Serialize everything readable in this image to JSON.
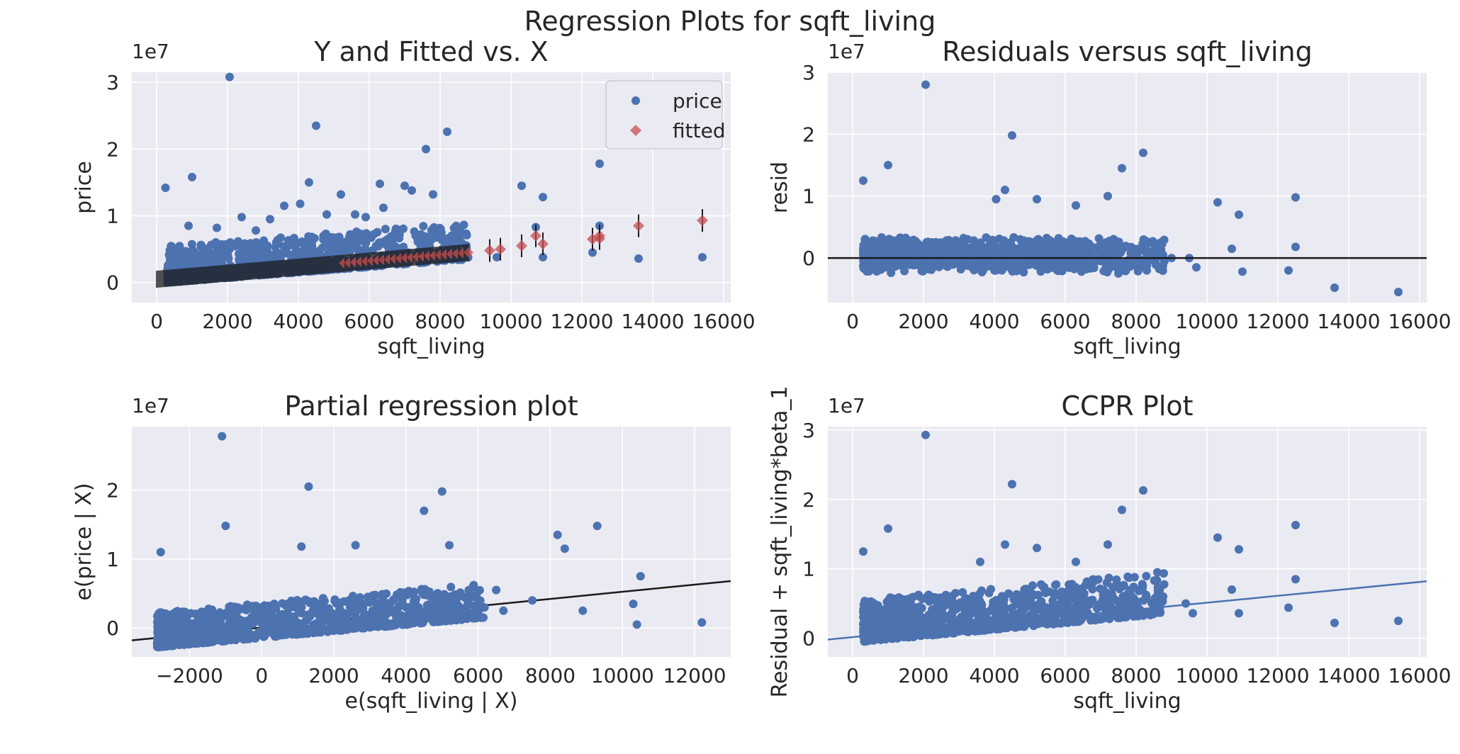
{
  "figure_title": "Regression Plots for sqft_living",
  "colors": {
    "panel_bg": "#eaeaf2",
    "grid": "#ffffff",
    "price_points": "#4c72b0",
    "fitted_points": "#c44e52",
    "errorbars": "#1a1a1a",
    "fit_line_black": "#1a1a1a",
    "fit_line_blue": "#4c72b0"
  },
  "chart_data": [
    {
      "type": "scatter",
      "title": "Y and Fitted vs. X",
      "xlabel": "sqft_living",
      "ylabel": "price",
      "y_offset_label": "1e7",
      "xlim": [
        -700,
        16200
      ],
      "ylim": [
        -0.3,
        3.15
      ],
      "xticks": [
        0,
        2000,
        4000,
        6000,
        8000,
        10000,
        12000,
        14000,
        16000
      ],
      "xtick_labels": [
        "0",
        "2000",
        "4000",
        "6000",
        "8000",
        "10000",
        "12000",
        "14000",
        "16000"
      ],
      "yticks": [
        0,
        1,
        2,
        3
      ],
      "ytick_labels": [
        "0",
        "1",
        "2",
        "3"
      ],
      "grid": true,
      "legend": {
        "placement": "top-right",
        "entries": [
          "price",
          "fitted"
        ]
      },
      "series": [
        {
          "name": "price",
          "marker": "circle",
          "points": [
            [
              2060,
              3.08
            ],
            [
              4500,
              2.35
            ],
            [
              8200,
              2.26
            ],
            [
              7600,
              2.0
            ],
            [
              12500,
              1.78
            ],
            [
              1000,
              1.58
            ],
            [
              4300,
              1.5
            ],
            [
              7000,
              1.45
            ],
            [
              6300,
              1.48
            ],
            [
              7200,
              1.38
            ],
            [
              7800,
              1.32
            ],
            [
              250,
              1.42
            ],
            [
              10300,
              1.45
            ],
            [
              10900,
              1.28
            ],
            [
              5200,
              1.32
            ],
            [
              4050,
              1.18
            ],
            [
              3600,
              1.15
            ],
            [
              4800,
              1.02
            ],
            [
              5600,
              1.02
            ],
            [
              5900,
              0.98
            ],
            [
              6400,
              1.12
            ],
            [
              3200,
              0.95
            ],
            [
              900,
              0.85
            ],
            [
              1700,
              0.82
            ],
            [
              2400,
              0.98
            ],
            [
              2800,
              0.78
            ],
            [
              10700,
              0.83
            ],
            [
              12500,
              0.85
            ],
            [
              12300,
              0.45
            ],
            [
              13600,
              0.36
            ],
            [
              15400,
              0.38
            ],
            [
              9600,
              0.38
            ],
            [
              10900,
              0.38
            ],
            [
              7500,
              0.5
            ],
            [
              8100,
              0.45
            ],
            [
              8600,
              0.45
            ]
          ],
          "cloud": {
            "x_range": [
              300,
              8800
            ],
            "y_low_at_x_min": 0.0,
            "y_low_at_x_max": 0.35,
            "spread": 0.55
          }
        },
        {
          "name": "fitted",
          "marker": "diamond",
          "errorbars": true,
          "line": {
            "x_range": [
              0,
              8800
            ],
            "y_range": [
              0.05,
              0.45
            ]
          },
          "points": [
            [
              9400,
              0.48
            ],
            [
              9700,
              0.5
            ],
            [
              10300,
              0.55
            ],
            [
              10700,
              0.7
            ],
            [
              10900,
              0.58
            ],
            [
              12300,
              0.65
            ],
            [
              12500,
              0.7
            ],
            [
              12500,
              0.66
            ],
            [
              13600,
              0.85
            ],
            [
              15400,
              0.93
            ]
          ]
        }
      ]
    },
    {
      "type": "scatter",
      "title": "Residuals versus sqft_living",
      "xlabel": "sqft_living",
      "ylabel": "resid",
      "y_offset_label": "1e7",
      "xlim": [
        -700,
        16200
      ],
      "ylim": [
        -0.72,
        3.0
      ],
      "xticks": [
        0,
        2000,
        4000,
        6000,
        8000,
        10000,
        12000,
        14000,
        16000
      ],
      "xtick_labels": [
        "0",
        "2000",
        "4000",
        "6000",
        "8000",
        "10000",
        "12000",
        "14000",
        "16000"
      ],
      "yticks": [
        0,
        1,
        2,
        3
      ],
      "ytick_labels": [
        "0",
        "1",
        "2",
        "3"
      ],
      "grid": true,
      "hline": 0,
      "series": [
        {
          "marker": "circle",
          "points": [
            [
              2060,
              2.8
            ],
            [
              4500,
              1.98
            ],
            [
              8200,
              1.7
            ],
            [
              7600,
              1.45
            ],
            [
              1000,
              1.5
            ],
            [
              300,
              1.25
            ],
            [
              4300,
              1.1
            ],
            [
              7200,
              1.0
            ],
            [
              12500,
              0.98
            ],
            [
              10300,
              0.9
            ],
            [
              4050,
              0.95
            ],
            [
              10900,
              0.7
            ],
            [
              5200,
              0.95
            ],
            [
              6300,
              0.85
            ],
            [
              10700,
              0.15
            ],
            [
              12500,
              0.18
            ],
            [
              12300,
              -0.2
            ],
            [
              13600,
              -0.48
            ],
            [
              15400,
              -0.55
            ],
            [
              11000,
              -0.22
            ],
            [
              9500,
              0.0
            ],
            [
              9700,
              -0.15
            ],
            [
              7500,
              -0.25
            ],
            [
              8300,
              -0.2
            ],
            [
              8800,
              -0.05
            ],
            [
              9000,
              0.0
            ]
          ],
          "cloud": {
            "x_range": [
              300,
              8800
            ],
            "y_center": 0.05,
            "spread": 0.5
          }
        }
      ]
    },
    {
      "type": "scatter",
      "title": "Partial regression plot",
      "xlabel": "e(sqft_living | X)",
      "ylabel": "e(price | X)",
      "y_offset_label": "1e7",
      "xlim": [
        -3600,
        13000
      ],
      "ylim": [
        -0.42,
        2.92
      ],
      "xticks": [
        -2000,
        0,
        2000,
        4000,
        6000,
        8000,
        10000,
        12000
      ],
      "xtick_labels": [
        "−2000",
        "0",
        "2000",
        "4000",
        "6000",
        "8000",
        "10000",
        "12000"
      ],
      "yticks": [
        0,
        1,
        2
      ],
      "ytick_labels": [
        "0",
        "1",
        "2"
      ],
      "grid": true,
      "fit_line": {
        "x": [
          -3600,
          13000
        ],
        "y": [
          -0.18,
          0.68
        ]
      },
      "series": [
        {
          "marker": "circle",
          "points": [
            [
              -1100,
              2.78
            ],
            [
              1300,
              2.05
            ],
            [
              5000,
              1.98
            ],
            [
              4500,
              1.7
            ],
            [
              -1000,
              1.48
            ],
            [
              9300,
              1.48
            ],
            [
              8200,
              1.35
            ],
            [
              8400,
              1.15
            ],
            [
              -2800,
              1.1
            ],
            [
              1100,
              1.18
            ],
            [
              2600,
              1.2
            ],
            [
              5200,
              1.2
            ],
            [
              10500,
              0.75
            ],
            [
              10300,
              0.35
            ],
            [
              10400,
              0.05
            ],
            [
              12200,
              0.08
            ],
            [
              8900,
              0.25
            ],
            [
              7500,
              0.4
            ],
            [
              6700,
              0.25
            ],
            [
              6500,
              0.55
            ]
          ],
          "cloud": {
            "x_range": [
              -2900,
              6200
            ],
            "y_low_at_x_min": -0.28,
            "y_low_at_x_max": 0.15,
            "spread": 0.5
          }
        }
      ]
    },
    {
      "type": "scatter",
      "title": "CCPR Plot",
      "xlabel": "sqft_living",
      "ylabel": "Residual + sqft_living*beta_1",
      "y_offset_label": "1e7",
      "xlim": [
        -700,
        16200
      ],
      "ylim": [
        -0.27,
        3.05
      ],
      "xticks": [
        0,
        2000,
        4000,
        6000,
        8000,
        10000,
        12000,
        14000,
        16000
      ],
      "xtick_labels": [
        "0",
        "2000",
        "4000",
        "6000",
        "8000",
        "10000",
        "12000",
        "14000",
        "16000"
      ],
      "yticks": [
        0,
        1,
        2,
        3
      ],
      "ytick_labels": [
        "0",
        "1",
        "2",
        "3"
      ],
      "grid": true,
      "fit_line": {
        "x": [
          -700,
          16200
        ],
        "y": [
          -0.02,
          0.82
        ]
      },
      "series": [
        {
          "marker": "circle",
          "points": [
            [
              2060,
              2.93
            ],
            [
              4500,
              2.22
            ],
            [
              8200,
              2.13
            ],
            [
              7600,
              1.85
            ],
            [
              12500,
              1.63
            ],
            [
              1000,
              1.58
            ],
            [
              10300,
              1.45
            ],
            [
              4300,
              1.35
            ],
            [
              300,
              1.25
            ],
            [
              7200,
              1.35
            ],
            [
              10900,
              1.28
            ],
            [
              5200,
              1.3
            ],
            [
              3600,
              1.1
            ],
            [
              6300,
              1.1
            ],
            [
              10700,
              0.7
            ],
            [
              12500,
              0.85
            ],
            [
              12300,
              0.44
            ],
            [
              13600,
              0.22
            ],
            [
              15400,
              0.25
            ],
            [
              9600,
              0.36
            ],
            [
              10900,
              0.36
            ],
            [
              9400,
              0.5
            ],
            [
              8600,
              0.95
            ]
          ],
          "cloud": {
            "x_range": [
              300,
              8800
            ],
            "y_low_at_x_min": -0.05,
            "y_low_at_x_max": 0.35,
            "spread": 0.6
          }
        }
      ]
    }
  ]
}
